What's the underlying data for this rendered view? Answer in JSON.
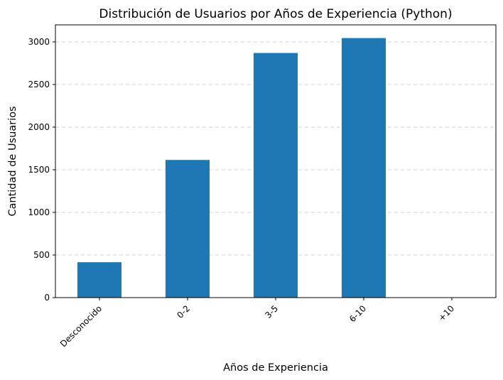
{
  "chart_data": {
    "type": "bar",
    "title": "Distribución de Usuarios por Años de Experiencia (Python)",
    "xlabel": "Años de Experiencia",
    "ylabel": "Cantidad de Usuarios",
    "categories": [
      "Desconocido",
      "0-2",
      "3-5",
      "6-10",
      "+10"
    ],
    "values": [
      415,
      1615,
      2870,
      3045,
      0
    ],
    "ylim": [
      0,
      3200
    ],
    "yticks": [
      0,
      500,
      1000,
      1500,
      2000,
      2500,
      3000
    ],
    "grid": "y",
    "bar_color": "#1f77b4"
  }
}
